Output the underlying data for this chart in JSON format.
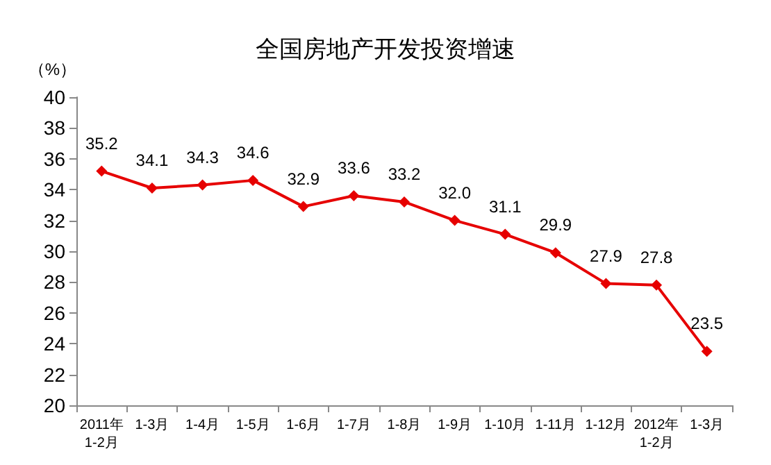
{
  "chart_data": {
    "type": "line",
    "title": "全国房地产开发投资增速",
    "ylabel": "（%）",
    "categories": [
      "2011年\n1-2月",
      "1-3月",
      "1-4月",
      "1-5月",
      "1-6月",
      "1-7月",
      "1-8月",
      "1-9月",
      "1-10月",
      "1-11月",
      "1-12月",
      "2012年\n1-2月",
      "1-3月"
    ],
    "series": [
      {
        "color": "#e60000",
        "values": [
          35.2,
          34.1,
          34.3,
          34.6,
          32.9,
          33.6,
          33.2,
          32.0,
          31.1,
          29.9,
          27.9,
          27.8,
          23.5
        ],
        "value_labels": [
          "35.2",
          "34.1",
          "34.3",
          "34.6",
          "32.9",
          "33.6",
          "33.2",
          "32.0",
          "31.1",
          "29.9",
          "27.9",
          "27.8",
          "23.5"
        ]
      }
    ],
    "ylim": [
      20,
      40
    ],
    "yticks": [
      20,
      22,
      24,
      26,
      28,
      30,
      32,
      34,
      36,
      38,
      40
    ],
    "grid": false,
    "marker": "diamond",
    "line_style": "solid"
  }
}
